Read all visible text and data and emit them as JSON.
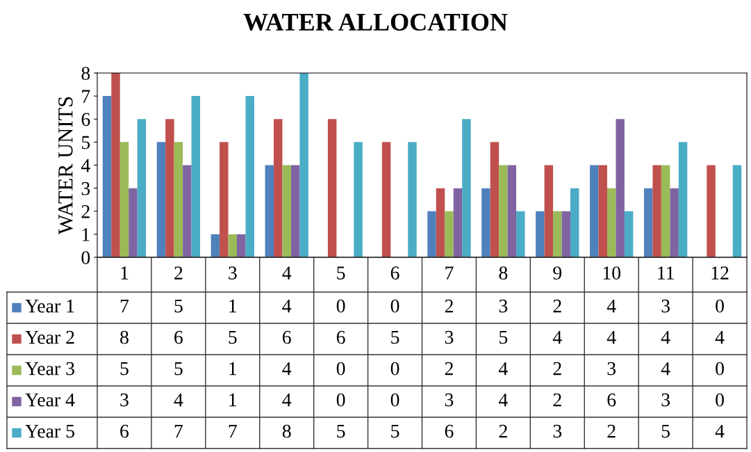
{
  "chart_data": {
    "type": "bar",
    "title": "WATER ALLOCATION",
    "ylabel": "WATER UNITS",
    "categories": [
      "1",
      "2",
      "3",
      "4",
      "5",
      "6",
      "7",
      "8",
      "9",
      "10",
      "11",
      "12"
    ],
    "series": [
      {
        "name": "Year 1",
        "color": "#4f81bd",
        "values": [
          7,
          5,
          1,
          4,
          0,
          0,
          2,
          3,
          2,
          4,
          3,
          0
        ]
      },
      {
        "name": "Year 2",
        "color": "#c0504d",
        "values": [
          8,
          6,
          5,
          6,
          6,
          5,
          3,
          5,
          4,
          4,
          4,
          4
        ]
      },
      {
        "name": "Year 3",
        "color": "#9bbb59",
        "values": [
          5,
          5,
          1,
          4,
          0,
          0,
          2,
          4,
          2,
          3,
          4,
          0
        ]
      },
      {
        "name": "Year 4",
        "color": "#8064a2",
        "values": [
          3,
          4,
          1,
          4,
          0,
          0,
          3,
          4,
          2,
          6,
          3,
          0
        ]
      },
      {
        "name": "Year 5",
        "color": "#4bacc6",
        "values": [
          6,
          7,
          7,
          8,
          5,
          5,
          6,
          2,
          3,
          2,
          5,
          4
        ]
      }
    ],
    "ylim": [
      0,
      8
    ],
    "yticks": [
      0,
      1,
      2,
      3,
      4,
      5,
      6,
      7,
      8
    ],
    "data_labels": true,
    "legend": "bottom",
    "grid": false
  }
}
